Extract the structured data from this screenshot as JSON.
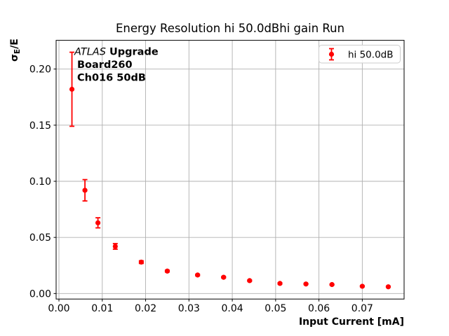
{
  "chart_data": {
    "type": "scatter",
    "title": "Energy Resolution hi 50.0dBhi gain Run",
    "xlabel": "Input Current [mA]",
    "ylabel": "σ_E/E",
    "ylabel_parts": {
      "sigma": "σ",
      "subscript": "E",
      "rest": "/E"
    },
    "xlim": [
      -0.00065,
      0.07965
    ],
    "ylim": [
      -0.0049,
      0.2256
    ],
    "xticks": [
      0.0,
      0.01,
      0.02,
      0.03,
      0.04,
      0.05,
      0.06,
      0.07
    ],
    "yticks": [
      0.0,
      0.05,
      0.1,
      0.15,
      0.2
    ],
    "grid": true,
    "legend": {
      "position": "upper right",
      "label": "hi 50.0dB"
    },
    "annotation": {
      "line1_italic": "ATLAS",
      "line1_bold": " Upgrade",
      "line2": "Board260",
      "line3": "Ch016 50dB"
    },
    "series": [
      {
        "name": "hi 50.0dB",
        "color": "#ff0000",
        "marker": "o",
        "points": [
          {
            "x": 0.003,
            "y": 0.182,
            "yerr": 0.033
          },
          {
            "x": 0.006,
            "y": 0.092,
            "yerr": 0.0095
          },
          {
            "x": 0.009,
            "y": 0.063,
            "yerr": 0.0045
          },
          {
            "x": 0.013,
            "y": 0.042,
            "yerr": 0.0025
          },
          {
            "x": 0.019,
            "y": 0.028,
            "yerr": 0.0012
          },
          {
            "x": 0.025,
            "y": 0.02,
            "yerr": 0.0008
          },
          {
            "x": 0.032,
            "y": 0.0165,
            "yerr": 0.0007
          },
          {
            "x": 0.038,
            "y": 0.0145,
            "yerr": 0.0006
          },
          {
            "x": 0.044,
            "y": 0.0115,
            "yerr": 0.0005
          },
          {
            "x": 0.051,
            "y": 0.009,
            "yerr": 0.0005
          },
          {
            "x": 0.057,
            "y": 0.0085,
            "yerr": 0.0004
          },
          {
            "x": 0.063,
            "y": 0.008,
            "yerr": 0.0004
          },
          {
            "x": 0.07,
            "y": 0.0065,
            "yerr": 0.0004
          },
          {
            "x": 0.076,
            "y": 0.006,
            "yerr": 0.0003
          }
        ]
      }
    ],
    "colors": {
      "series": "#ff0000",
      "grid": "#b0b0b0",
      "axes": "#000000",
      "legend_border": "#cccccc",
      "background": "#ffffff"
    }
  }
}
